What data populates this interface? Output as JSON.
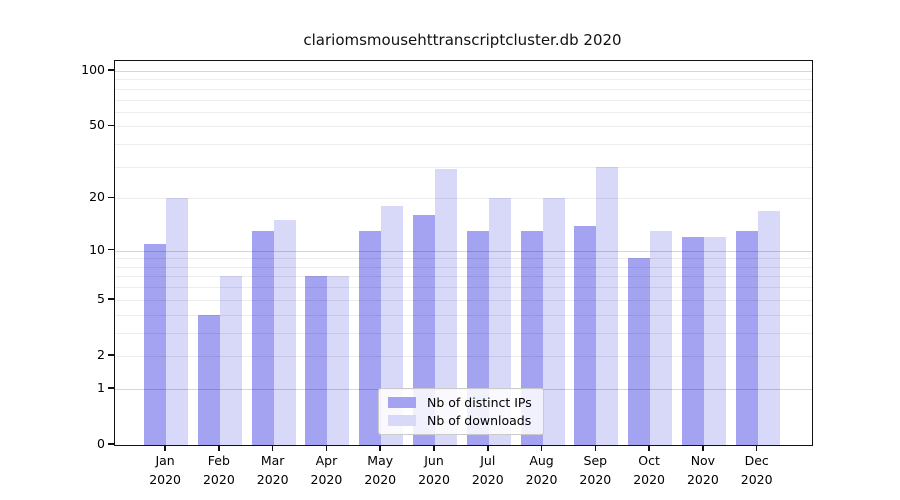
{
  "figure": {
    "title": "clariomsmousehttranscriptcluster.db 2020"
  },
  "chart_data": {
    "type": "bar",
    "title": "clariomsmousehttranscriptcluster.db 2020",
    "categories": [
      "Jan",
      "Feb",
      "Mar",
      "Apr",
      "May",
      "Jun",
      "Jul",
      "Aug",
      "Sep",
      "Oct",
      "Nov",
      "Dec"
    ],
    "year": "2020",
    "series": [
      {
        "name": "Nb of distinct IPs",
        "color": "#a3a3f2",
        "values": [
          11,
          4,
          13,
          7,
          13,
          16,
          13,
          13,
          14,
          9,
          12,
          13
        ]
      },
      {
        "name": "Nb of downloads",
        "color": "#d8d8f8",
        "values": [
          20,
          7,
          15,
          7,
          18,
          29,
          20,
          20,
          30,
          13,
          12,
          17
        ]
      }
    ],
    "xlabel": "",
    "ylabel": "",
    "yscale": "log1p",
    "ylim": [
      0,
      110
    ],
    "y_ticks": [
      0,
      1,
      2,
      5,
      10,
      20,
      50,
      100
    ],
    "gridlines": {
      "major": [
        1,
        10,
        100
      ],
      "minor": [
        2,
        3,
        4,
        5,
        6,
        7,
        8,
        9,
        20,
        30,
        40,
        50,
        60,
        70,
        80,
        90
      ]
    },
    "grid": true,
    "legend_position": "lower-center"
  }
}
